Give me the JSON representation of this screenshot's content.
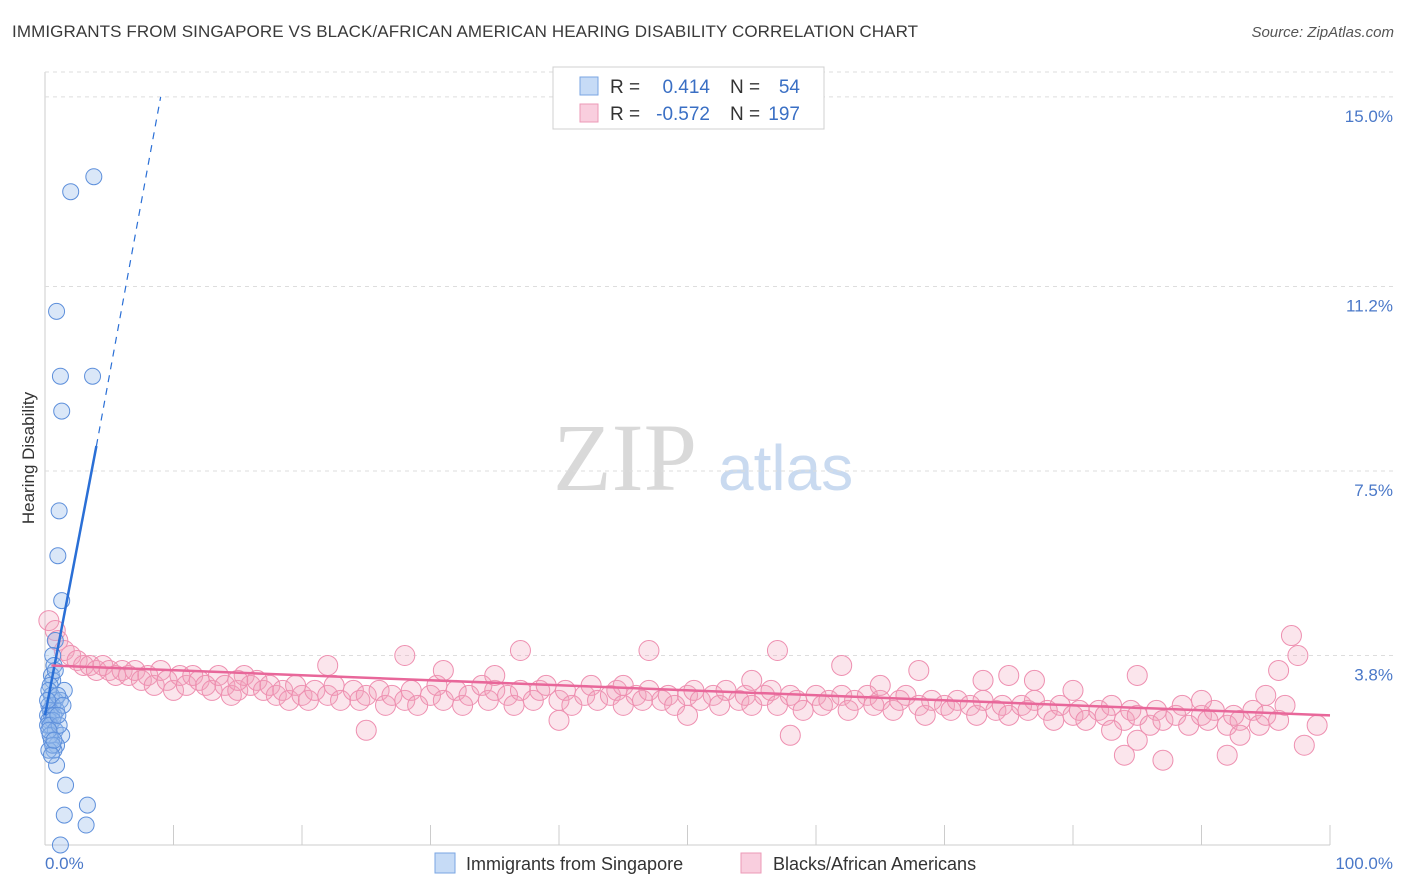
{
  "title": "IMMIGRANTS FROM SINGAPORE VS BLACK/AFRICAN AMERICAN HEARING DISABILITY CORRELATION CHART",
  "source": "Source: ZipAtlas.com",
  "watermark": {
    "zip": "ZIP",
    "atlas": "atlas"
  },
  "colors": {
    "blue": "#6f9fe0",
    "blue_line": "#2a6fd6",
    "pink": "#ee86a8",
    "pink_line": "#e8679a",
    "tick": "#4a78c8"
  },
  "legend_box": {
    "row1": {
      "r_label": "R =",
      "r_value": "0.414",
      "n_label": "N =",
      "n_value": "54"
    },
    "row2": {
      "r_label": "R =",
      "r_value": "-0.572",
      "n_label": "N =",
      "n_value": "197"
    }
  },
  "chart_data": {
    "type": "scatter",
    "title": "IMMIGRANTS FROM SINGAPORE VS BLACK/AFRICAN AMERICAN HEARING DISABILITY CORRELATION CHART",
    "xlabel": "",
    "ylabel": "Hearing Disability",
    "xlim": [
      0,
      100
    ],
    "ylim": [
      0,
      15.5
    ],
    "x_tick_labels": [
      "0.0%",
      "100.0%"
    ],
    "y_ticks": [
      3.8,
      7.5,
      11.2,
      15.0
    ],
    "y_tick_labels": [
      "3.8%",
      "7.5%",
      "11.2%",
      "15.0%"
    ],
    "grid": true,
    "series": [
      {
        "name": "Immigrants from Singapore",
        "color": "#6f9fe0",
        "R": 0.414,
        "N": 54,
        "trend": {
          "x0": 0.0,
          "y0": 2.6,
          "x1": 4.0,
          "y1": 8.0,
          "dash_to_x": 9.0,
          "dash_to_y": 15.0
        },
        "points": [
          [
            3.8,
            13.4
          ],
          [
            2.0,
            13.1
          ],
          [
            0.9,
            10.7
          ],
          [
            1.2,
            9.4
          ],
          [
            3.7,
            9.4
          ],
          [
            1.3,
            8.7
          ],
          [
            1.1,
            6.7
          ],
          [
            1.0,
            5.8
          ],
          [
            1.3,
            4.9
          ],
          [
            0.8,
            4.1
          ],
          [
            0.6,
            3.8
          ],
          [
            0.7,
            3.6
          ],
          [
            0.5,
            3.4
          ],
          [
            0.6,
            3.3
          ],
          [
            0.4,
            3.2
          ],
          [
            1.5,
            3.1
          ],
          [
            0.5,
            3.0
          ],
          [
            0.8,
            2.9
          ],
          [
            1.2,
            2.9
          ],
          [
            0.3,
            2.8
          ],
          [
            0.6,
            2.8
          ],
          [
            0.9,
            2.7
          ],
          [
            0.4,
            2.7
          ],
          [
            0.2,
            2.6
          ],
          [
            0.5,
            2.6
          ],
          [
            0.7,
            2.6
          ],
          [
            0.3,
            2.5
          ],
          [
            0.6,
            2.5
          ],
          [
            0.2,
            2.4
          ],
          [
            0.4,
            2.4
          ],
          [
            0.8,
            2.3
          ],
          [
            1.3,
            2.2
          ],
          [
            0.5,
            2.1
          ],
          [
            0.9,
            2.0
          ],
          [
            0.7,
            1.9
          ],
          [
            0.3,
            1.9
          ],
          [
            0.9,
            1.6
          ],
          [
            1.6,
            1.2
          ],
          [
            3.3,
            0.8
          ],
          [
            1.5,
            0.6
          ],
          [
            3.2,
            0.4
          ],
          [
            1.2,
            0.0
          ],
          [
            0.3,
            3.1
          ],
          [
            1.0,
            3.0
          ],
          [
            0.2,
            2.9
          ],
          [
            0.4,
            2.2
          ],
          [
            0.6,
            2.0
          ],
          [
            1.1,
            2.4
          ],
          [
            0.5,
            1.8
          ],
          [
            0.8,
            3.5
          ],
          [
            1.4,
            2.8
          ],
          [
            0.3,
            2.3
          ],
          [
            0.7,
            2.1
          ],
          [
            1.0,
            2.6
          ]
        ]
      },
      {
        "name": "Blacks/African Americans",
        "color": "#ee86a8",
        "R": -0.572,
        "N": 197,
        "trend": {
          "x0": 0.5,
          "y0": 3.6,
          "x1": 100.0,
          "y1": 2.6
        },
        "points": [
          [
            0.3,
            4.5
          ],
          [
            0.8,
            4.3
          ],
          [
            1.0,
            4.1
          ],
          [
            1.5,
            3.9
          ],
          [
            2.0,
            3.8
          ],
          [
            2.5,
            3.7
          ],
          [
            3.0,
            3.6
          ],
          [
            3.5,
            3.6
          ],
          [
            4.0,
            3.5
          ],
          [
            4.5,
            3.6
          ],
          [
            5.0,
            3.5
          ],
          [
            5.5,
            3.4
          ],
          [
            6.0,
            3.5
          ],
          [
            6.5,
            3.4
          ],
          [
            7.0,
            3.5
          ],
          [
            7.5,
            3.3
          ],
          [
            8.0,
            3.4
          ],
          [
            8.5,
            3.2
          ],
          [
            9.0,
            3.5
          ],
          [
            9.5,
            3.3
          ],
          [
            10.0,
            3.1
          ],
          [
            10.5,
            3.4
          ],
          [
            11.0,
            3.2
          ],
          [
            11.5,
            3.4
          ],
          [
            12.0,
            3.3
          ],
          [
            12.5,
            3.2
          ],
          [
            13.0,
            3.1
          ],
          [
            13.5,
            3.4
          ],
          [
            14.0,
            3.2
          ],
          [
            14.5,
            3.0
          ],
          [
            15.0,
            3.1
          ],
          [
            15.5,
            3.4
          ],
          [
            16.0,
            3.2
          ],
          [
            16.5,
            3.3
          ],
          [
            17.0,
            3.1
          ],
          [
            17.5,
            3.2
          ],
          [
            18.0,
            3.0
          ],
          [
            18.5,
            3.1
          ],
          [
            19.0,
            2.9
          ],
          [
            19.5,
            3.2
          ],
          [
            20.0,
            3.0
          ],
          [
            20.5,
            2.9
          ],
          [
            21.0,
            3.1
          ],
          [
            22.0,
            3.0
          ],
          [
            22.5,
            3.2
          ],
          [
            23.0,
            2.9
          ],
          [
            24.0,
            3.1
          ],
          [
            24.5,
            2.9
          ],
          [
            25.0,
            3.0
          ],
          [
            26.0,
            3.1
          ],
          [
            26.5,
            2.8
          ],
          [
            27.0,
            3.0
          ],
          [
            28.0,
            2.9
          ],
          [
            28.5,
            3.1
          ],
          [
            29.0,
            2.8
          ],
          [
            30.0,
            3.0
          ],
          [
            30.5,
            3.2
          ],
          [
            31.0,
            2.9
          ],
          [
            32.0,
            3.1
          ],
          [
            32.5,
            2.8
          ],
          [
            33.0,
            3.0
          ],
          [
            34.0,
            3.2
          ],
          [
            34.5,
            2.9
          ],
          [
            35.0,
            3.1
          ],
          [
            36.0,
            3.0
          ],
          [
            36.5,
            2.8
          ],
          [
            37.0,
            3.1
          ],
          [
            38.0,
            2.9
          ],
          [
            38.5,
            3.1
          ],
          [
            39.0,
            3.2
          ],
          [
            40.0,
            2.9
          ],
          [
            40.5,
            3.1
          ],
          [
            41.0,
            2.8
          ],
          [
            42.0,
            3.0
          ],
          [
            42.5,
            3.2
          ],
          [
            43.0,
            2.9
          ],
          [
            44.0,
            3.0
          ],
          [
            44.5,
            3.1
          ],
          [
            45.0,
            2.8
          ],
          [
            46.0,
            3.0
          ],
          [
            46.5,
            2.9
          ],
          [
            47.0,
            3.1
          ],
          [
            48.0,
            2.9
          ],
          [
            48.5,
            3.0
          ],
          [
            49.0,
            2.8
          ],
          [
            50.0,
            3.0
          ],
          [
            50.5,
            3.1
          ],
          [
            51.0,
            2.9
          ],
          [
            52.0,
            3.0
          ],
          [
            52.5,
            2.8
          ],
          [
            53.0,
            3.1
          ],
          [
            54.0,
            2.9
          ],
          [
            54.5,
            3.0
          ],
          [
            55.0,
            2.8
          ],
          [
            56.0,
            3.0
          ],
          [
            56.5,
            3.1
          ],
          [
            57.0,
            2.8
          ],
          [
            58.0,
            3.0
          ],
          [
            58.5,
            2.9
          ],
          [
            59.0,
            2.7
          ],
          [
            60.0,
            3.0
          ],
          [
            60.5,
            2.8
          ],
          [
            61.0,
            2.9
          ],
          [
            62.0,
            3.0
          ],
          [
            62.5,
            2.7
          ],
          [
            63.0,
            2.9
          ],
          [
            64.0,
            3.0
          ],
          [
            64.5,
            2.8
          ],
          [
            65.0,
            2.9
          ],
          [
            66.0,
            2.7
          ],
          [
            66.5,
            2.9
          ],
          [
            67.0,
            3.0
          ],
          [
            68.0,
            2.8
          ],
          [
            68.5,
            2.6
          ],
          [
            69.0,
            2.9
          ],
          [
            70.0,
            2.8
          ],
          [
            70.5,
            2.7
          ],
          [
            71.0,
            2.9
          ],
          [
            72.0,
            2.8
          ],
          [
            72.5,
            2.6
          ],
          [
            73.0,
            2.9
          ],
          [
            74.0,
            2.7
          ],
          [
            74.5,
            2.8
          ],
          [
            75.0,
            2.6
          ],
          [
            76.0,
            2.8
          ],
          [
            76.5,
            2.7
          ],
          [
            77.0,
            2.9
          ],
          [
            78.0,
            2.7
          ],
          [
            78.5,
            2.5
          ],
          [
            79.0,
            2.8
          ],
          [
            80.0,
            2.6
          ],
          [
            80.5,
            2.7
          ],
          [
            81.0,
            2.5
          ],
          [
            82.0,
            2.7
          ],
          [
            82.5,
            2.6
          ],
          [
            83.0,
            2.8
          ],
          [
            84.0,
            2.5
          ],
          [
            84.5,
            2.7
          ],
          [
            85.0,
            2.6
          ],
          [
            86.0,
            2.4
          ],
          [
            86.5,
            2.7
          ],
          [
            87.0,
            2.5
          ],
          [
            88.0,
            2.6
          ],
          [
            88.5,
            2.8
          ],
          [
            89.0,
            2.4
          ],
          [
            90.0,
            2.6
          ],
          [
            90.5,
            2.5
          ],
          [
            91.0,
            2.7
          ],
          [
            92.0,
            2.4
          ],
          [
            92.5,
            2.6
          ],
          [
            93.0,
            2.5
          ],
          [
            94.0,
            2.7
          ],
          [
            94.5,
            2.4
          ],
          [
            95.0,
            2.6
          ],
          [
            96.0,
            2.5
          ],
          [
            96.5,
            2.8
          ],
          [
            97.0,
            4.2
          ],
          [
            97.5,
            3.8
          ],
          [
            98.0,
            2.0
          ],
          [
            99.0,
            2.4
          ],
          [
            28.0,
            3.8
          ],
          [
            37.0,
            3.9
          ],
          [
            47.0,
            3.9
          ],
          [
            57.0,
            3.9
          ],
          [
            62.0,
            3.6
          ],
          [
            68.0,
            3.5
          ],
          [
            73.0,
            3.3
          ],
          [
            77.0,
            3.3
          ],
          [
            80.0,
            3.1
          ],
          [
            83.0,
            2.3
          ],
          [
            84.0,
            1.8
          ],
          [
            85.0,
            2.1
          ],
          [
            87.0,
            1.7
          ],
          [
            92.0,
            1.8
          ],
          [
            95.0,
            3.0
          ],
          [
            96.0,
            3.5
          ],
          [
            25.0,
            2.3
          ],
          [
            40.0,
            2.5
          ],
          [
            50.0,
            2.6
          ],
          [
            58.0,
            2.2
          ],
          [
            35.0,
            3.4
          ],
          [
            45.0,
            3.2
          ],
          [
            55.0,
            3.3
          ],
          [
            65.0,
            3.2
          ],
          [
            75.0,
            3.4
          ],
          [
            85.0,
            3.4
          ],
          [
            90.0,
            2.9
          ],
          [
            93.0,
            2.2
          ],
          [
            15.0,
            3.3
          ],
          [
            22.0,
            3.6
          ],
          [
            31.0,
            3.5
          ]
        ]
      }
    ]
  },
  "bottom_legend": {
    "item1": "Immigrants from Singapore",
    "item2": "Blacks/African Americans"
  }
}
